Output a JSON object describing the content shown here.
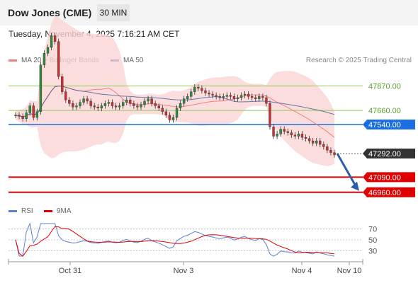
{
  "header": {
    "title": "Dow Jones (CME)",
    "timeframe": "30 MIN"
  },
  "datetime": "Tuesday, November 4, 2025 7:16:21 AM CET",
  "legend": {
    "ma20": "MA 20 + Bollinger Bands",
    "ma50": "MA 50",
    "credit": "Research © 2025 Trading Central"
  },
  "rsi_legend": {
    "rsi": "RSI",
    "ma": "9MA"
  },
  "colors": {
    "ma20": "#f08080",
    "ma50": "#1f4e8c",
    "band": "#fbd4d4",
    "pivot": "#1a6fe0",
    "support": "#e00000",
    "resistance": "#8fc95a",
    "rsi": "#5b7fd6",
    "rsi_ma": "#e00000",
    "up_candle": "#2e8b3a",
    "down_candle": "#c83232",
    "arrow": "#2b5ea8"
  },
  "chart_data": {
    "type": "candlestick",
    "x_labels": [
      "Oct 31",
      "Nov 3",
      "Nov 4",
      "Nov 10"
    ],
    "ylim": [
      46880,
      48000
    ],
    "last_price": 47292,
    "levels": [
      {
        "value": 47870,
        "label": "47870.00",
        "kind": "resistance"
      },
      {
        "value": 47660,
        "label": "47660.00",
        "kind": "resistance"
      },
      {
        "value": 47540,
        "label": "47540.00",
        "kind": "pivot"
      },
      {
        "value": 47292,
        "label": "47292.00",
        "kind": "last"
      },
      {
        "value": 47090,
        "label": "47090.00",
        "kind": "support"
      },
      {
        "value": 46960,
        "label": "46960.00",
        "kind": "support"
      }
    ],
    "close": [
      47620,
      47610,
      47590,
      47640,
      47700,
      47600,
      47650,
      48050,
      48150,
      48200,
      48300,
      48250,
      47950,
      47820,
      47750,
      47720,
      47690,
      47700,
      47730,
      47760,
      47740,
      47700,
      47690,
      47680,
      47700,
      47720,
      47730,
      47700,
      47690,
      47700,
      47730,
      47750,
      47720,
      47700,
      47690,
      47710,
      47740,
      47760,
      47720,
      47700,
      47680,
      47650,
      47620,
      47580,
      47600,
      47680,
      47720,
      47760,
      47780,
      47820,
      47860,
      47850,
      47830,
      47810,
      47800,
      47790,
      47780,
      47770,
      47780,
      47790,
      47780,
      47760,
      47770,
      47790,
      47800,
      47780,
      47770,
      47760,
      47780,
      47770,
      47720,
      47520,
      47440,
      47460,
      47500,
      47480,
      47470,
      47450,
      47440,
      47460,
      47430,
      47420,
      47400,
      47380,
      47400,
      47370,
      47350,
      47320,
      47300,
      47280
    ],
    "rsi": {
      "ylim": [
        20,
        80
      ],
      "ticks": [
        70,
        50,
        30
      ],
      "tick_labels": [
        "70",
        "50",
        "30"
      ]
    }
  }
}
